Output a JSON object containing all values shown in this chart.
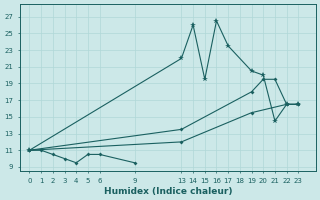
{
  "xlabel": "Humidex (Indice chaleur)",
  "bg_color": "#cce8e8",
  "line_color": "#1a6060",
  "grid_color": "#b0d8d8",
  "xticks": [
    0,
    1,
    2,
    3,
    4,
    5,
    6,
    9,
    13,
    14,
    15,
    16,
    17,
    18,
    19,
    20,
    21,
    22,
    23
  ],
  "yticks": [
    9,
    11,
    13,
    15,
    17,
    19,
    21,
    23,
    25,
    27
  ],
  "ylim": [
    8.5,
    28.5
  ],
  "xlim": [
    -0.8,
    24.5
  ],
  "line1_x": [
    0,
    1,
    2,
    3,
    4,
    5,
    6,
    9
  ],
  "line1_y": [
    11,
    11,
    10.5,
    10,
    9.5,
    10.5,
    10.5,
    9.5
  ],
  "line2_x": [
    0,
    13,
    14,
    15,
    16,
    17,
    19,
    20,
    21,
    22,
    23
  ],
  "line2_y": [
    11,
    22,
    26,
    19.5,
    26.5,
    23.5,
    20.5,
    20,
    14.5,
    16.5,
    16.5
  ],
  "line3_x": [
    0,
    13,
    19,
    20,
    21,
    22,
    23
  ],
  "line3_y": [
    11,
    13.5,
    18,
    19.5,
    19.5,
    16.5,
    16.5
  ],
  "line4_x": [
    0,
    13,
    19,
    22,
    23
  ],
  "line4_y": [
    11,
    12,
    15.5,
    16.5,
    16.5
  ]
}
